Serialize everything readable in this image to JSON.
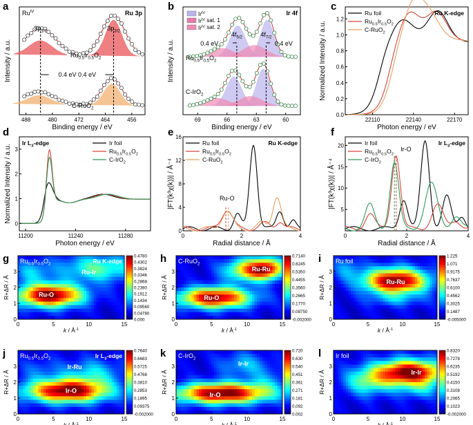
{
  "chart_data": [
    {
      "id": "a",
      "type": "scatter",
      "title": "Ru 3p",
      "xlabel": "Binding energy / eV",
      "ylabel": "Intensity / a.u.",
      "xlim": [
        490,
        452
      ],
      "xticks": [
        488,
        480,
        472,
        464,
        456
      ],
      "annotations": [
        "Ru",
        "IV",
        "3p",
        "1/2",
        "3p",
        "3/2",
        "0.4 eV",
        "0.4 eV",
        "Ru",
        "0.5",
        "Ir",
        "0.5",
        "O",
        "2",
        "C-RuO",
        "2"
      ],
      "series": [
        {
          "name": "Ru0.5Ir0.5O2",
          "offset": 0.55,
          "peaks": [
            [
              483.6,
              0.3,
              4.5
            ],
            [
              461.5,
              0.45,
              3.5
            ]
          ],
          "fill_peaks": [
            [
              483.6,
              0.16,
              3.5
            ],
            [
              461.5,
              0.4,
              2.5
            ]
          ]
        },
        {
          "name": "C-RuO2",
          "offset": 0.0,
          "peaks": [
            [
              484.0,
              0.14,
              4.5
            ],
            [
              462.0,
              0.3,
              3.0
            ]
          ],
          "fill_peaks": [
            [
              484.0,
              0.1,
              3.5
            ],
            [
              462.0,
              0.24,
              2.5
            ]
          ]
        }
      ]
    },
    {
      "id": "b",
      "type": "scatter",
      "title": "Ir 4f",
      "xlabel": "Binding energy / eV",
      "ylabel": "Intensity / a.u.",
      "xlim": [
        70.5,
        58.5
      ],
      "xticks": [
        69,
        66,
        63,
        60
      ],
      "legend": [
        "Ir",
        "IV",
        "Ir",
        "IV",
        " sat. 1",
        "Ir",
        "IV",
        " sat. 2"
      ],
      "annotations": [
        "4f",
        "5/2",
        "4f",
        "7/2",
        "0.4 eV",
        "0.4 eV",
        "Ru",
        "0.5",
        "Ir",
        "0.5",
        "O",
        "2",
        "C-IrO",
        "2"
      ],
      "series": [
        {
          "name": "Ru0.5Ir0.5O2",
          "offset": 0.5,
          "peaks": [
            [
              64.9,
              0.32,
              0.8
            ],
            [
              61.9,
              0.38,
              0.7
            ]
          ],
          "sat": [
            [
              63.2,
              0.12,
              1.2
            ],
            [
              66.5,
              0.09,
              1.2
            ]
          ]
        },
        {
          "name": "C-IrO2",
          "offset": 0.0,
          "peaks": [
            [
              65.3,
              0.3,
              0.8
            ],
            [
              62.3,
              0.38,
              0.7
            ]
          ],
          "sat": [
            [
              63.6,
              0.1,
              1.2
            ],
            [
              67.0,
              0.08,
              1.2
            ]
          ]
        }
      ]
    },
    {
      "id": "c",
      "type": "line",
      "title": "Ru K-edge",
      "xlabel": "Photon energy / eV",
      "ylabel": "Normalized Intensity / a.u.",
      "xlim": [
        22090,
        22180
      ],
      "ylim": [
        0,
        1.35
      ],
      "xticks": [
        22110,
        22140,
        22170
      ],
      "yticks": [
        0.0,
        0.2,
        0.4,
        0.6,
        0.8,
        1.0,
        1.2
      ],
      "series": [
        {
          "name": "Ru foil",
          "edge": 22115,
          "width": 4,
          "wl": [
            [
              22132,
              0.2
            ],
            [
              22158,
              0.35
            ]
          ]
        },
        {
          "name": "Ru0.5Ir0.5O2",
          "edge": 22122,
          "width": 4,
          "wl": [
            [
              22137,
              0.3
            ],
            [
              22157,
              0.32
            ]
          ]
        },
        {
          "name": "C-RuO2",
          "edge": 22124,
          "width": 4,
          "wl": [
            [
              22140,
              0.42
            ],
            [
              22152,
              0.25
            ]
          ]
        }
      ]
    },
    {
      "id": "d",
      "type": "line",
      "title": "Ir L3-edge",
      "xlabel": "Photon energy / eV",
      "ylabel": "Normalized Intensity / a.u.",
      "xlim": [
        11195,
        11300
      ],
      "ylim": [
        -0.3,
        3.5
      ],
      "xticks": [
        11200,
        11240,
        11280
      ],
      "yticks": [
        0,
        1,
        2,
        3
      ],
      "series": [
        {
          "name": "Ir foil",
          "peak": 11218,
          "h": 1.7,
          "w": 3.5
        },
        {
          "name": "Ru0.5Ir0.5O2",
          "peak": 11219,
          "h": 3.05,
          "w": 2.2
        },
        {
          "name": "C-IrO2",
          "peak": 11219,
          "h": 2.75,
          "w": 2.2
        }
      ]
    },
    {
      "id": "e",
      "type": "line",
      "title": "Ru K-edge",
      "xlabel": "Radial distance / Å",
      "ylabel": "|FT(k³χ(k))| / Å⁻⁴",
      "xlim": [
        0,
        4
      ],
      "ylim": [
        0,
        16
      ],
      "xticks": [
        0,
        2,
        4
      ],
      "yticks": [
        0,
        4,
        8,
        12,
        16
      ],
      "annotations": [
        "Ru-O"
      ],
      "series": [
        {
          "name": "Ru foil",
          "peaks": [
            [
              2.4,
              14.5,
              0.13
            ],
            [
              1.85,
              2.5,
              0.12
            ],
            [
              3.3,
              3.2,
              0.12
            ],
            [
              3.75,
              1.2,
              0.1
            ]
          ]
        },
        {
          "name": "Ru0.5Ir0.5O2",
          "peaks": [
            [
              1.5,
              3.3,
              0.18
            ],
            [
              2.8,
              0.9,
              0.18
            ],
            [
              3.3,
              1.3,
              0.12
            ]
          ]
        },
        {
          "name": "C-RuO2",
          "peaks": [
            [
              1.5,
              3.0,
              0.18
            ],
            [
              2.7,
              1.0,
              0.15
            ],
            [
              3.2,
              5.5,
              0.14
            ]
          ]
        }
      ]
    },
    {
      "id": "f",
      "type": "line",
      "title": "Ir L3-edge",
      "xlabel": "Radial distance / Å",
      "ylabel": "|FT(k³χ(k))| / Å⁻⁴",
      "xlim": [
        0,
        4
      ],
      "ylim": [
        0,
        22
      ],
      "xticks": [
        0,
        2,
        4
      ],
      "yticks": [
        5,
        10,
        15,
        20
      ],
      "annotations": [
        "Ir-O"
      ],
      "series": [
        {
          "name": "Ir foil",
          "peaks": [
            [
              1.9,
              7.0,
              0.13
            ],
            [
              2.6,
              20.5,
              0.14
            ],
            [
              3.3,
              7.5,
              0.14
            ],
            [
              3.8,
              3.0,
              0.12
            ]
          ]
        },
        {
          "name": "Ru0.5Ir0.5O2",
          "peaks": [
            [
              1.65,
              17.5,
              0.14
            ],
            [
              0.8,
              3.5,
              0.15
            ],
            [
              3.0,
              5.5,
              0.18
            ],
            [
              3.6,
              2.0,
              0.15
            ]
          ]
        },
        {
          "name": "C-IrO2",
          "peaks": [
            [
              1.6,
              15.5,
              0.14
            ],
            [
              0.8,
              5.5,
              0.15
            ],
            [
              2.8,
              10.5,
              0.2
            ],
            [
              3.6,
              3.0,
              0.15
            ]
          ]
        }
      ]
    },
    {
      "id": "g",
      "type": "heatmap",
      "title": "Ru K-edge",
      "sample": "Ru0.5Ir0.5O2",
      "xlabel": "k / Å⁻¹",
      "ylabel": "R+ΔR / Å",
      "xlim": [
        0,
        15
      ],
      "ylim": [
        0,
        4
      ],
      "xticks": [
        0,
        5,
        10,
        15
      ],
      "yticks": [
        0,
        1,
        2,
        3
      ],
      "colorbar": [
        "0.4780",
        "0.4302",
        "0.3824",
        "0.3346",
        "0.2868",
        "0.2390",
        "0.1912",
        "0.1434",
        "0.09560",
        "0.04780",
        "0.000"
      ],
      "colorbar_values": [
        0.478,
        0.4302,
        0.3824,
        0.3346,
        0.2868,
        0.239,
        0.1912,
        0.1434,
        0.0956,
        0.0478,
        0.0
      ],
      "labels": [
        {
          "text": "Ru-O",
          "k": 4.0,
          "r": 1.55
        },
        {
          "text": "Ru-Ir",
          "k": 10.0,
          "r": 2.95
        }
      ],
      "blobs": [
        [
          4.5,
          1.5,
          3.2,
          0.5,
          1.0
        ],
        [
          11.5,
          3.2,
          4.0,
          0.6,
          0.38
        ],
        [
          2.0,
          3.0,
          1.8,
          0.5,
          0.22
        ]
      ]
    },
    {
      "id": "h",
      "type": "heatmap",
      "title": "",
      "sample": "C-RuO2",
      "xlabel": "k / Å⁻¹",
      "ylabel": "R+ΔR / Å",
      "xlim": [
        0,
        15
      ],
      "ylim": [
        0,
        4
      ],
      "xticks": [
        0,
        5,
        10,
        15
      ],
      "yticks": [
        0,
        1,
        2,
        3
      ],
      "colorbar": [
        "0.7140",
        "0.6245",
        "0.5350",
        "0.4455",
        "0.3560",
        "0.2665",
        "0.1770",
        "0.08750",
        "-0.002000"
      ],
      "colorbar_values": [
        0.714,
        0.6245,
        0.535,
        0.4455,
        0.356,
        0.2665,
        0.177,
        0.0875,
        -0.002
      ],
      "labels": [
        {
          "text": "Ru-O",
          "k": 5.0,
          "r": 1.35
        },
        {
          "text": "Ru-Ru",
          "k": 12.0,
          "r": 3.15
        }
      ],
      "blobs": [
        [
          5.5,
          1.35,
          3.5,
          0.45,
          0.95
        ],
        [
          10.5,
          3.1,
          2.5,
          0.5,
          0.65
        ],
        [
          13.0,
          3.2,
          1.6,
          0.45,
          0.55
        ]
      ]
    },
    {
      "id": "i",
      "type": "heatmap",
      "title": "",
      "sample": "Ru foil",
      "xlabel": "k / Å⁻¹",
      "ylabel": "R+ΔR / Å",
      "xlim": [
        0,
        15
      ],
      "ylim": [
        0,
        4
      ],
      "xticks": [
        0,
        5,
        10,
        15
      ],
      "yticks": [
        0,
        1,
        2,
        3
      ],
      "colorbar": [
        "1.225",
        "1.071",
        "0.9175",
        "0.7637",
        "0.6100",
        "0.4562",
        "0.3025",
        "0.1487",
        "-0.005000"
      ],
      "colorbar_values": [
        1.225,
        1.071,
        0.9175,
        0.7637,
        0.61,
        0.4562,
        0.3025,
        0.1487,
        -0.005
      ],
      "labels": [
        {
          "text": "Ru-Ru",
          "k": 9.0,
          "r": 2.35
        }
      ],
      "blobs": [
        [
          9.0,
          2.4,
          3.2,
          0.55,
          1.0
        ],
        [
          9.0,
          1.2,
          3.0,
          0.3,
          0.15
        ],
        [
          2.0,
          3.2,
          1.5,
          0.5,
          0.18
        ]
      ]
    },
    {
      "id": "j",
      "type": "heatmap",
      "title": "Ir L3-edge",
      "sample": "Ru0.5Ir0.5O2",
      "xlabel": "k / Å⁻¹",
      "ylabel": "R+ΔR / Å",
      "xlim": [
        0,
        15
      ],
      "ylim": [
        0,
        4
      ],
      "xticks": [
        0,
        5,
        10,
        15
      ],
      "yticks": [
        0,
        1,
        2,
        3
      ],
      "colorbar": [
        "0.7640",
        "0.6683",
        "0.5725",
        "0.4768",
        "0.3810",
        "0.2853",
        "0.1895",
        "0.09375",
        "-0.002000"
      ],
      "colorbar_values": [
        0.764,
        0.6683,
        0.5725,
        0.4768,
        0.381,
        0.2853,
        0.1895,
        0.09375,
        -0.002
      ],
      "labels": [
        {
          "text": "Ir-O",
          "k": 7.5,
          "r": 1.45
        },
        {
          "text": "Ir-Ru",
          "k": 8.0,
          "r": 2.95
        }
      ],
      "blobs": [
        [
          7.0,
          1.45,
          4.0,
          0.5,
          1.0
        ],
        [
          10.5,
          2.6,
          3.0,
          0.6,
          0.25
        ],
        [
          3.0,
          2.8,
          2.0,
          0.5,
          0.12
        ]
      ]
    },
    {
      "id": "k",
      "type": "heatmap",
      "title": "",
      "sample": "C-IrO2",
      "xlabel": "k / Å⁻¹",
      "ylabel": "R+ΔR / Å",
      "xlim": [
        0,
        15
      ],
      "ylim": [
        0,
        4
      ],
      "xticks": [
        0,
        5,
        10,
        15
      ],
      "yticks": [
        0,
        1,
        2,
        3
      ],
      "colorbar": [
        "0.720",
        "0.630",
        "0.540",
        "0.451",
        "0.361",
        "0.271",
        "0.181",
        "0.092",
        "0.002"
      ],
      "colorbar_values": [
        0.72,
        0.63,
        0.54,
        0.451,
        0.361,
        0.271,
        0.181,
        0.092,
        0.002
      ],
      "labels": [
        {
          "text": "Ir-O",
          "k": 5.5,
          "r": 1.2
        },
        {
          "text": "Ir-Ir",
          "k": 9.5,
          "r": 3.15
        }
      ],
      "blobs": [
        [
          6.5,
          1.3,
          4.5,
          0.45,
          1.0
        ],
        [
          9.5,
          3.1,
          2.5,
          0.55,
          0.22
        ],
        [
          13.0,
          2.0,
          2.0,
          0.6,
          0.15
        ]
      ]
    },
    {
      "id": "l",
      "type": "heatmap",
      "title": "",
      "sample": "Ir foil",
      "xlabel": "k / Å⁻¹",
      "ylabel": "R+ΔR / Å",
      "xlim": [
        0,
        15
      ],
      "ylim": [
        0,
        4
      ],
      "xticks": [
        0,
        5,
        10,
        15
      ],
      "yticks": [
        0,
        1,
        2,
        3
      ],
      "colorbar": [
        "0.8320",
        "0.7278",
        "0.6235",
        "0.5192",
        "0.4150",
        "0.3108",
        "0.2065",
        "0.1023",
        "-0.002000"
      ],
      "colorbar_values": [
        0.832,
        0.7278,
        0.6235,
        0.5192,
        0.415,
        0.3108,
        0.2065,
        0.1023,
        -0.002
      ],
      "labels": [
        {
          "text": "Ir-Ir",
          "k": 12.0,
          "r": 2.6
        }
      ],
      "blobs": [
        [
          11.0,
          2.6,
          3.5,
          0.55,
          1.0
        ],
        [
          5.0,
          2.0,
          2.5,
          0.6,
          0.35
        ],
        [
          12.5,
          1.5,
          2.0,
          0.4,
          0.2
        ]
      ]
    }
  ],
  "legend_labels": {
    "ru_foil": "Ru foil",
    "ir_foil": "Ir foil",
    "c_ruo2": "C-RuO",
    "c_iro2": "C-IrO",
    "sub_2": "2",
    "alloy_ru": "Ru",
    "alloy_ir": "Ir",
    "alloy_o": "O",
    "sub_05": "0.5"
  },
  "colors": {
    "black": "#000000",
    "red": "#d9443d",
    "orange": "#e8a060",
    "green": "#2f9a5a",
    "xps_red": "#e8555a",
    "xps_orange": "#f0b070",
    "sat1": "#b9b4ec",
    "sat2": "#f08ab5"
  },
  "panel_letters": [
    "a",
    "b",
    "c",
    "d",
    "e",
    "f",
    "g",
    "h",
    "i",
    "j",
    "k",
    "l"
  ]
}
